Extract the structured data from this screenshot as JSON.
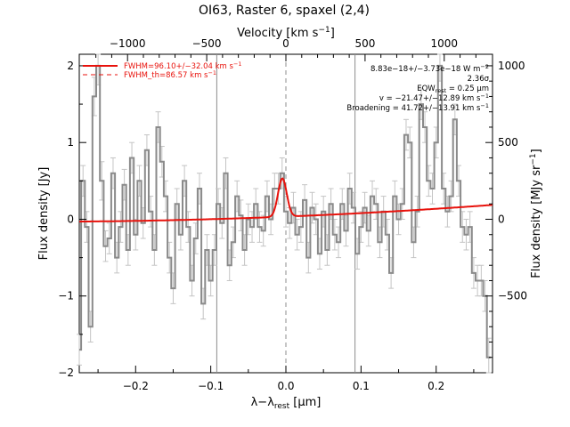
{
  "chart_data": {
    "type": "line",
    "title": "OI63, Raster 6, spaxel (2,4)",
    "xlabel": "λ−λ_rest [μm]",
    "xlabel_parts": {
      "lambda": "λ−λ",
      "sub": "rest",
      "unit": " [μm]"
    },
    "ylabel": "Flux density [Jy]",
    "top_label": "Velocity [km s⁻¹]",
    "top_label_parts": {
      "main": "Velocity [km s",
      "sup": "−1",
      "close": "]"
    },
    "right_label": "Flux density [MJy sr⁻¹]",
    "right_label_parts": {
      "main": "Flux density [MJy sr",
      "sup": "−1",
      "close": "]"
    },
    "xlim": [
      -0.275,
      0.275
    ],
    "ylim": [
      -2.0,
      2.15
    ],
    "x_ticks": [
      -0.2,
      -0.1,
      0.0,
      0.1,
      0.2
    ],
    "x_tick_labels": [
      "−0.2",
      "−0.1",
      "0.0",
      "0.1",
      "0.2"
    ],
    "y_ticks": [
      -2,
      -1,
      0,
      1,
      2
    ],
    "y_tick_labels": [
      "−2",
      "−1",
      "0",
      "1",
      "2"
    ],
    "velocity_ticks": [
      -1000,
      -500,
      0,
      500,
      1000
    ],
    "velocity_tick_labels": [
      "−1000",
      "−500",
      "0",
      "500",
      "1000"
    ],
    "surface_ticks": [
      -500,
      0,
      500,
      1000
    ],
    "surface_tick_labels": [
      "−500",
      "0",
      "500",
      "1000"
    ],
    "vertical_lines": {
      "solid": [
        -0.092,
        0.092
      ],
      "dashed": [
        0.0
      ]
    },
    "annotations": [
      {
        "pre": "8.83e−18+/−3.73e−18 W m",
        "sup": "−2"
      },
      {
        "pre": "2.36σ"
      },
      {
        "pre": "EQW",
        "sub": "rest",
        "post": " = 0.25 μm"
      },
      {
        "pre": "v = −21.47+/−12.89 km s",
        "sup": "−1"
      },
      {
        "pre": "Broadening = 41.72+/−13.91 km s",
        "sup": "−1"
      }
    ],
    "legend": [
      {
        "pre": "FWHM=96.10+/−32.04 km s",
        "sup": "−1",
        "style": "solid"
      },
      {
        "pre": "FWHM_th=86.57 km s",
        "sup": "−1",
        "style": "dashed"
      }
    ],
    "legend_position": "top-left",
    "series": [
      {
        "style": "steps",
        "color": "#8a8a8a",
        "errorbars": true,
        "x": [
          -0.275,
          -0.27,
          -0.265,
          -0.26,
          -0.255,
          -0.25,
          -0.245,
          -0.24,
          -0.235,
          -0.23,
          -0.225,
          -0.22,
          -0.215,
          -0.21,
          -0.205,
          -0.2,
          -0.195,
          -0.19,
          -0.185,
          -0.18,
          -0.175,
          -0.17,
          -0.165,
          -0.16,
          -0.155,
          -0.15,
          -0.145,
          -0.14,
          -0.135,
          -0.13,
          -0.125,
          -0.12,
          -0.115,
          -0.11,
          -0.105,
          -0.1,
          -0.095,
          -0.09,
          -0.085,
          -0.08,
          -0.075,
          -0.07,
          -0.065,
          -0.06,
          -0.055,
          -0.05,
          -0.045,
          -0.04,
          -0.035,
          -0.03,
          -0.025,
          -0.02,
          -0.015,
          -0.01,
          -0.005,
          0.0,
          0.005,
          0.01,
          0.015,
          0.02,
          0.025,
          0.03,
          0.035,
          0.04,
          0.045,
          0.05,
          0.055,
          0.06,
          0.065,
          0.07,
          0.075,
          0.08,
          0.085,
          0.09,
          0.095,
          0.1,
          0.105,
          0.11,
          0.115,
          0.12,
          0.125,
          0.13,
          0.135,
          0.14,
          0.145,
          0.15,
          0.155,
          0.16,
          0.165,
          0.17,
          0.175,
          0.18,
          0.185,
          0.19,
          0.195,
          0.2,
          0.205,
          0.21,
          0.215,
          0.22,
          0.225,
          0.23,
          0.235,
          0.24,
          0.245,
          0.25,
          0.255,
          0.26,
          0.265,
          0.27
        ],
        "y": [
          -1.7,
          0.5,
          -0.1,
          -1.4,
          1.6,
          2.0,
          0.5,
          -0.35,
          -0.25,
          0.6,
          -0.5,
          -0.1,
          0.45,
          -0.4,
          0.8,
          -0.2,
          0.5,
          -0.05,
          0.9,
          0.1,
          -0.4,
          1.2,
          0.75,
          0.3,
          -0.5,
          -0.9,
          0.2,
          -0.2,
          0.5,
          -0.1,
          -0.8,
          -0.25,
          0.4,
          -1.1,
          -0.4,
          -0.8,
          -0.4,
          0.2,
          -0.05,
          0.6,
          -0.6,
          -0.3,
          0.3,
          0.05,
          -0.4,
          0.0,
          -0.1,
          0.2,
          -0.1,
          -0.15,
          0.3,
          0.0,
          0.4,
          0.4,
          0.6,
          0.1,
          -0.05,
          0.15,
          -0.2,
          -0.1,
          0.25,
          -0.5,
          0.15,
          0.0,
          -0.45,
          0.1,
          -0.4,
          0.2,
          -0.2,
          -0.3,
          0.2,
          -0.15,
          0.4,
          0.15,
          -0.45,
          -0.1,
          0.15,
          -0.15,
          0.3,
          0.2,
          -0.3,
          0.1,
          -0.2,
          -0.7,
          0.3,
          0.0,
          0.2,
          1.1,
          1.0,
          -0.3,
          0.1,
          1.5,
          1.2,
          0.5,
          0.4,
          1.0,
          2.0,
          0.4,
          0.1,
          0.3,
          1.3,
          0.5,
          -0.1,
          -0.2,
          -0.1,
          -0.7,
          -0.8,
          -0.8,
          -1.0,
          -1.8
        ],
        "err": [
          0.2,
          0.2,
          0.2,
          0.2,
          0.25,
          0.25,
          0.25,
          0.2,
          0.2,
          0.2,
          0.2,
          0.2,
          0.2,
          0.2,
          0.2,
          0.2,
          0.2,
          0.2,
          0.2,
          0.2,
          0.2,
          0.2,
          0.2,
          0.2,
          0.2,
          0.2,
          0.2,
          0.2,
          0.2,
          0.2,
          0.2,
          0.2,
          0.2,
          0.2,
          0.2,
          0.2,
          0.2,
          0.2,
          0.2,
          0.2,
          0.2,
          0.2,
          0.2,
          0.2,
          0.2,
          0.2,
          0.2,
          0.2,
          0.2,
          0.2,
          0.2,
          0.2,
          0.2,
          0.2,
          0.2,
          0.2,
          0.2,
          0.2,
          0.2,
          0.2,
          0.2,
          0.2,
          0.2,
          0.2,
          0.2,
          0.2,
          0.2,
          0.2,
          0.2,
          0.2,
          0.2,
          0.2,
          0.2,
          0.2,
          0.2,
          0.2,
          0.2,
          0.2,
          0.2,
          0.2,
          0.2,
          0.2,
          0.2,
          0.2,
          0.2,
          0.2,
          0.2,
          0.2,
          0.2,
          0.2,
          0.2,
          0.2,
          0.2,
          0.2,
          0.2,
          0.2,
          0.2,
          0.2,
          0.2,
          0.2,
          0.2,
          0.2,
          0.2,
          0.2,
          0.2,
          0.2,
          0.2,
          0.2,
          0.2,
          0.25
        ]
      },
      {
        "style": "model",
        "color": "#e8120c",
        "baseline": {
          "x0": -0.275,
          "c0": -0.03,
          "c1": 0.075,
          "c2": 0.58
        },
        "gaussian": {
          "center": -0.0047,
          "amplitude": 0.5,
          "sigma": 0.0058
        }
      }
    ]
  }
}
